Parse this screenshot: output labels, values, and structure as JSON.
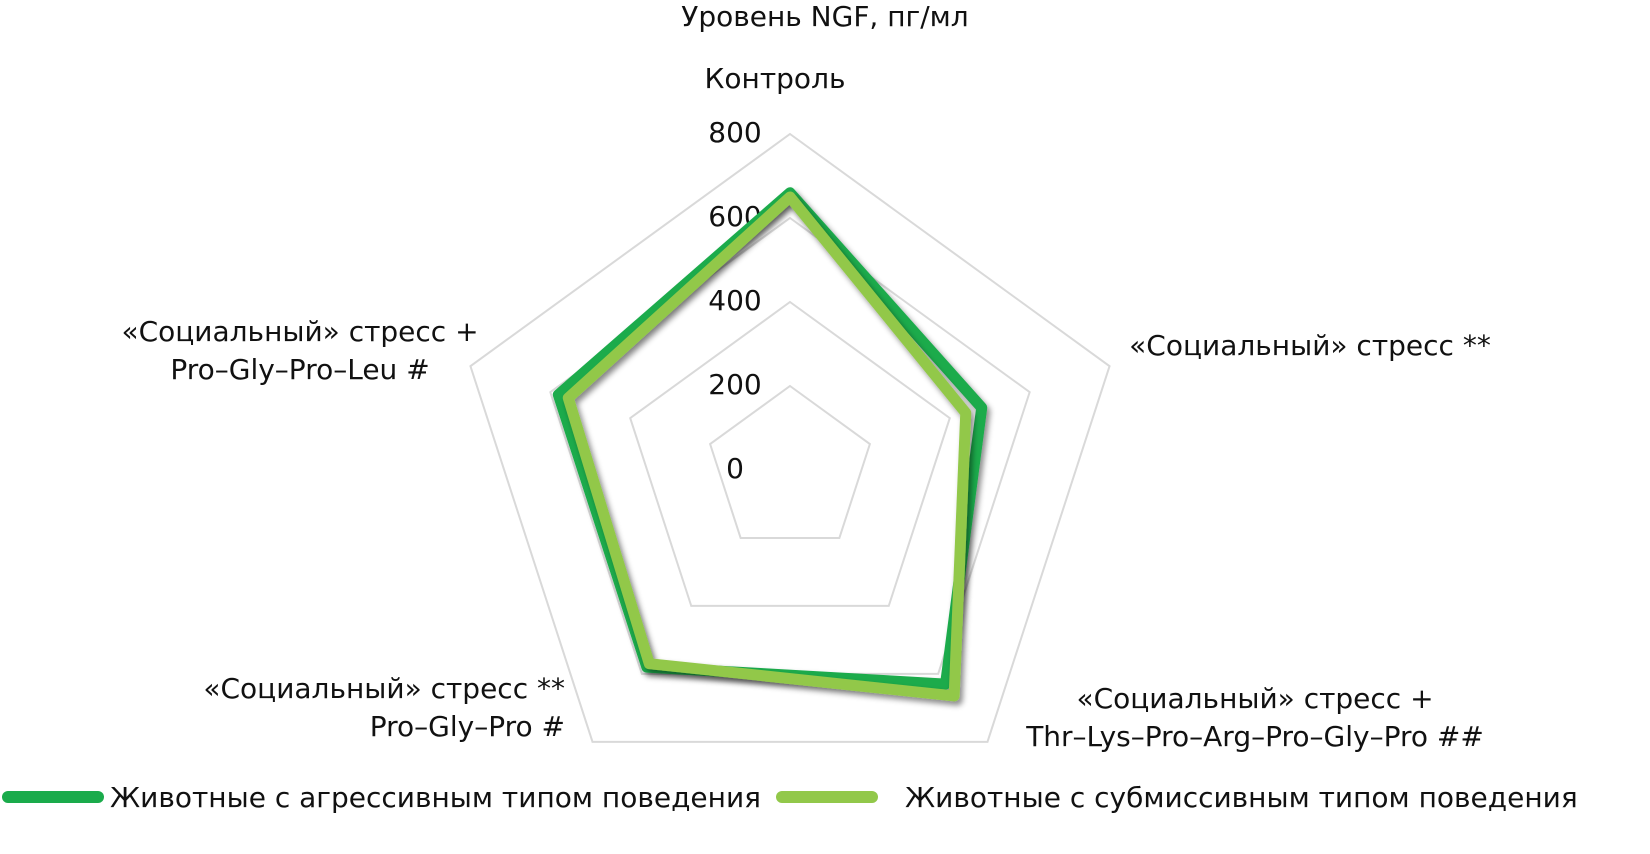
{
  "chart_data": {
    "type": "radar",
    "title": "Уровень NGF, пг/мл",
    "categories": [
      "Контроль",
      "«Социальный» стресс **",
      "«Социальный» стресс +\nThr–Lys–Pro–Arg–Pro–Gly–Pro ##",
      "«Социальный» стресс **\nPro–Gly–Pro #",
      "«Социальный» стресс +\nPro–Gly–Pro–Leu #"
    ],
    "series": [
      {
        "name": "Животные с агрессивным типом поведения",
        "color": "#1aab4b",
        "values": [
          660,
          480,
          630,
          580,
          580
        ]
      },
      {
        "name": "Животные с субмиссивным типом поведения",
        "color": "#92c84a",
        "values": [
          650,
          440,
          665,
          570,
          555
        ]
      }
    ],
    "rlim": [
      0,
      800
    ],
    "rticks": [
      0,
      200,
      400,
      600,
      800
    ],
    "grid": true
  }
}
